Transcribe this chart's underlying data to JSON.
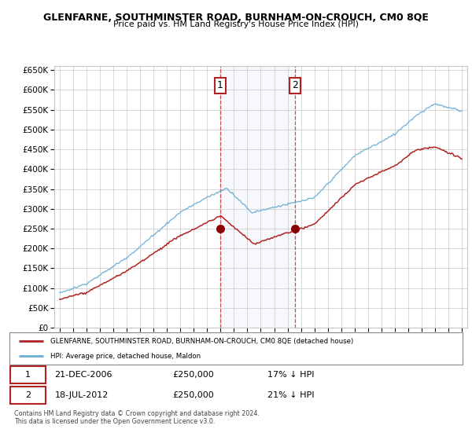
{
  "title": "GLENFARNE, SOUTHMINSTER ROAD, BURNHAM-ON-CROUCH, CM0 8QE",
  "subtitle": "Price paid vs. HM Land Registry's House Price Index (HPI)",
  "ylim": [
    0,
    660000
  ],
  "yticks": [
    0,
    50000,
    100000,
    150000,
    200000,
    250000,
    300000,
    350000,
    400000,
    450000,
    500000,
    550000,
    600000,
    650000
  ],
  "hpi_color": "#6baed6",
  "price_color": "#b22222",
  "marker_color": "#8b0000",
  "sale1_date_x": 2006.97,
  "sale1_price": 250000,
  "sale2_date_x": 2012.54,
  "sale2_price": 250000,
  "legend_line1": "GLENFARNE, SOUTHMINSTER ROAD, BURNHAM-ON-CROUCH, CM0 8QE (detached house)",
  "legend_line2": "HPI: Average price, detached house, Maldon",
  "annotation1_label": "1",
  "annotation1_date": "21-DEC-2006",
  "annotation1_price": "£250,000",
  "annotation1_hpi": "17% ↓ HPI",
  "annotation2_label": "2",
  "annotation2_date": "18-JUL-2012",
  "annotation2_price": "£250,000",
  "annotation2_hpi": "21% ↓ HPI",
  "footnote": "Contains HM Land Registry data © Crown copyright and database right 2024.\nThis data is licensed under the Open Government Licence v3.0.",
  "bg_color": "#ffffff",
  "grid_color": "#c8c8c8",
  "shade_color": "#dce6f1",
  "xmin": 1994.6,
  "xmax": 2025.4
}
